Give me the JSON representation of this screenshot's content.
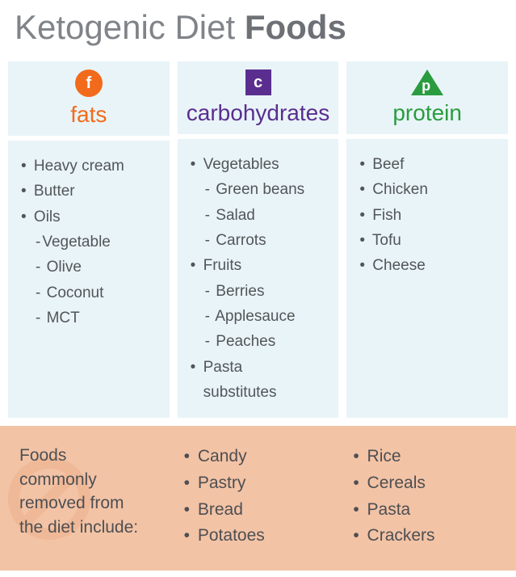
{
  "title_light": "Ketogenic Diet ",
  "title_bold": "Foods",
  "colors": {
    "fats": "#f26a1b",
    "carbs": "#5a2e8f",
    "protein": "#2a9c3f",
    "header_bg": "#e9f4f8",
    "body_bg": "#e9f4f8",
    "removed_bg": "#f3c3a6",
    "text": "#525659",
    "no_symbol": "#e9a77f"
  },
  "columns": [
    {
      "key": "fats",
      "icon_letter": "f",
      "icon_shape": "circle",
      "title": "fats",
      "title_color": "#f26a1b",
      "icon_bg": "#f26a1b",
      "items": [
        {
          "text": "Heavy cream",
          "sub": false
        },
        {
          "text": "Butter",
          "sub": false
        },
        {
          "text": "Oils",
          "sub": false
        },
        {
          "text": "Vegetable",
          "sub": true,
          "dash_tight": true
        },
        {
          "text": "Olive",
          "sub": true
        },
        {
          "text": "Coconut",
          "sub": true
        },
        {
          "text": "MCT",
          "sub": true
        }
      ]
    },
    {
      "key": "carbs",
      "icon_letter": "c",
      "icon_shape": "square",
      "title": "carbohydrates",
      "title_color": "#5a2e8f",
      "icon_bg": "#5a2e8f",
      "items": [
        {
          "text": "Vegetables",
          "sub": false
        },
        {
          "text": "Green beans",
          "sub": true
        },
        {
          "text": "Salad",
          "sub": true
        },
        {
          "text": "Carrots",
          "sub": true
        },
        {
          "text": "Fruits",
          "sub": false
        },
        {
          "text": "Berries",
          "sub": true
        },
        {
          "text": "Applesauce",
          "sub": true
        },
        {
          "text": "Peaches",
          "sub": true
        },
        {
          "text": "Pasta",
          "sub": false
        },
        {
          "text": "substitutes",
          "sub": false,
          "no_bullet": true,
          "indent": true
        }
      ]
    },
    {
      "key": "protein",
      "icon_letter": "p",
      "icon_shape": "triangle",
      "title": "protein",
      "title_color": "#2a9c3f",
      "icon_bg": "#2a9c3f",
      "items": [
        {
          "text": "Beef",
          "sub": false
        },
        {
          "text": "Chicken",
          "sub": false
        },
        {
          "text": "Fish",
          "sub": false
        },
        {
          "text": "Tofu",
          "sub": false
        },
        {
          "text": "Cheese",
          "sub": false
        }
      ]
    }
  ],
  "removed": {
    "label_lines": [
      "Foods",
      "commonly",
      "removed from",
      "the diet include:"
    ],
    "col2": [
      "Candy",
      "Pastry",
      "Bread",
      "Potatoes"
    ],
    "col3": [
      "Rice",
      "Cereals",
      "Pasta",
      "Crackers"
    ]
  }
}
